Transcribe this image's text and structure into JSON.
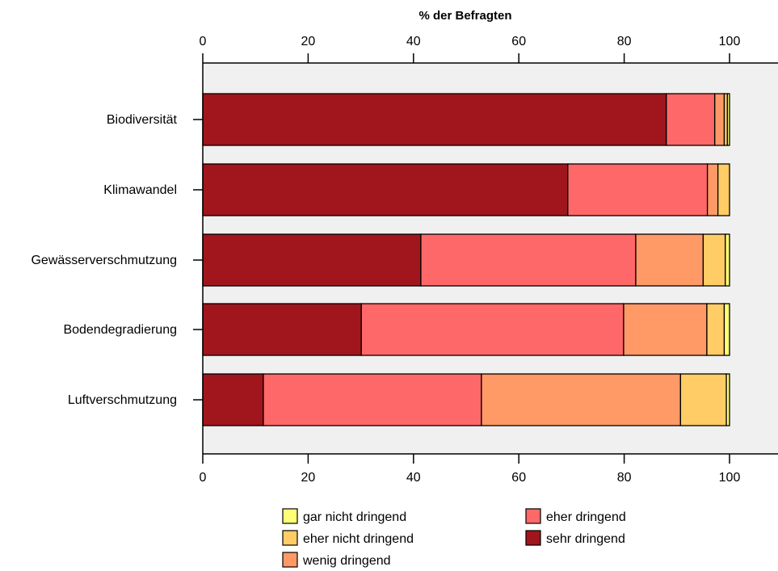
{
  "chart_data": {
    "type": "bar",
    "orientation": "horizontal",
    "stacked": true,
    "title": "",
    "xlabel": "% der Befragten",
    "ylabel": "",
    "xlim": [
      0,
      100
    ],
    "xticks": [
      0,
      20,
      40,
      60,
      80,
      100
    ],
    "grid": false,
    "legend_position": "bottom",
    "categories": [
      "Biodiversität",
      "Klimawandel",
      "Gewässerverschmutzung",
      "Bodendegradierung",
      "Luftverschmutzung"
    ],
    "series": [
      {
        "name": "sehr dringend",
        "color": "#A0161C",
        "values": [
          88.0,
          69.3,
          41.4,
          30.1,
          11.5
        ]
      },
      {
        "name": "eher dringend",
        "color": "#FF6868",
        "values": [
          9.2,
          26.5,
          40.8,
          49.8,
          41.4
        ]
      },
      {
        "name": "wenig dringend",
        "color": "#FF9966",
        "values": [
          1.8,
          2.0,
          12.8,
          15.8,
          37.8
        ]
      },
      {
        "name": "eher nicht dringend",
        "color": "#FFCC66",
        "values": [
          0.6,
          2.2,
          4.2,
          3.3,
          8.7
        ]
      },
      {
        "name": "gar nicht dringend",
        "color": "#FFFF77",
        "values": [
          0.4,
          0.0,
          0.8,
          1.0,
          0.6
        ]
      }
    ],
    "legend_order": [
      "gar nicht dringend",
      "eher nicht dringend",
      "wenig dringend",
      "eher dringend",
      "sehr dringend"
    ]
  }
}
